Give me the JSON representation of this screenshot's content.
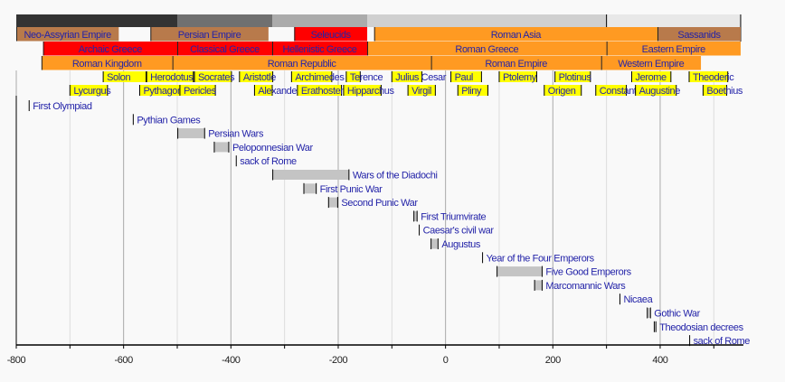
{
  "chart_data": {
    "type": "timeline",
    "xlim": [
      -800,
      550
    ],
    "x_ticks": [
      -800,
      -600,
      -400,
      -200,
      0,
      200,
      400
    ],
    "grid": {
      "major_every": 200,
      "minor_every": 100
    },
    "colors": {
      "text": "#2323a8",
      "brown": "#b87a4b",
      "red": "#ff0000",
      "orange": "#ff9a22",
      "person": "#ffff00",
      "event_bar": "#c4c4c4",
      "era_bands": [
        "#333333",
        "#707070",
        "#ababab",
        "#d0d0d0",
        "#e8e8e8"
      ]
    },
    "era_band": [
      {
        "start": -800,
        "end": -500
      },
      {
        "start": -500,
        "end": -323
      },
      {
        "start": -323,
        "end": -146
      },
      {
        "start": -146,
        "end": 300
      },
      {
        "start": 300,
        "end": 550
      }
    ],
    "rows": [
      [
        {
          "label": "Neo-Assyrian Empire",
          "start": -800,
          "end": -609,
          "color": "brown"
        },
        {
          "label": "Persian Empire",
          "start": -550,
          "end": -330,
          "color": "brown"
        },
        {
          "label": "Seleucids",
          "start": -282,
          "end": -146,
          "color": "red"
        },
        {
          "label": "Roman Asia",
          "start": -133,
          "end": 395,
          "color": "orange"
        },
        {
          "label": "Sassanids",
          "start": 395,
          "end": 550,
          "color": "brown"
        }
      ],
      [
        {
          "label": "Archaic Greece",
          "start": -750,
          "end": -500,
          "color": "red"
        },
        {
          "label": "Classical Greece",
          "start": -500,
          "end": -323,
          "color": "red"
        },
        {
          "label": "Hellenistic Greece",
          "start": -323,
          "end": -146,
          "color": "red"
        },
        {
          "label": "Roman Greece",
          "start": -146,
          "end": 300,
          "color": "orange"
        },
        {
          "label": "Eastern Empire",
          "start": 300,
          "end": 550,
          "color": "orange"
        }
      ],
      [
        {
          "label": "Roman Kingdom",
          "start": -753,
          "end": -509,
          "color": "orange"
        },
        {
          "label": "Roman Republic",
          "start": -509,
          "end": -27,
          "color": "orange"
        },
        {
          "label": "Roman Empire",
          "start": -27,
          "end": 290,
          "color": "orange"
        },
        {
          "label": "Western Empire",
          "start": 290,
          "end": 476,
          "color": "orange"
        }
      ]
    ],
    "people": [
      [
        {
          "label": "Solon",
          "start": -638,
          "end": -558
        },
        {
          "label": "Herodotus",
          "start": -557,
          "end": -470
        },
        {
          "label": "Socrates",
          "start": -468,
          "end": -399
        },
        {
          "label": "Aristotle",
          "start": -384,
          "end": -322
        },
        {
          "label": "Archimedes",
          "start": -287,
          "end": -212
        },
        {
          "label": "Terence",
          "start": -185,
          "end": -159
        },
        {
          "label": "Julius Cesar",
          "start": -100,
          "end": -44
        },
        {
          "label": "Paul",
          "start": 10,
          "end": 67
        },
        {
          "label": "Ptolemy",
          "start": 100,
          "end": 170
        },
        {
          "label": "Plotinus",
          "start": 204,
          "end": 270
        },
        {
          "label": "Jerome",
          "start": 347,
          "end": 420
        },
        {
          "label": "Theoderic",
          "start": 454,
          "end": 526
        }
      ],
      [
        {
          "label": "Lycurgus",
          "start": -700,
          "end": -630
        },
        {
          "label": "Pythagoras",
          "start": -570,
          "end": -495
        },
        {
          "label": "Pericles",
          "start": -495,
          "end": -429
        },
        {
          "label": "Alexander",
          "start": -356,
          "end": -323
        },
        {
          "label": "Erathostenes",
          "start": -276,
          "end": -194
        },
        {
          "label": "Hipparchus",
          "start": -190,
          "end": -120
        },
        {
          "label": "Virgil",
          "start": -70,
          "end": -19
        },
        {
          "label": "Pliny",
          "start": 23,
          "end": 79
        },
        {
          "label": "Origen",
          "start": 184,
          "end": 253
        },
        {
          "label": "Constantine",
          "start": 280,
          "end": 337
        },
        {
          "label": "Augustine",
          "start": 354,
          "end": 430
        },
        {
          "label": "Boethius",
          "start": 480,
          "end": 524
        }
      ]
    ],
    "events": [
      {
        "label": "First Olympiad",
        "start": -776,
        "end": -776
      },
      {
        "label": "Pythian Games",
        "start": -582,
        "end": -582
      },
      {
        "label": "Persian Wars",
        "start": -499,
        "end": -449
      },
      {
        "label": "Peloponnesian War",
        "start": -431,
        "end": -404
      },
      {
        "label": "sack of Rome",
        "start": -390,
        "end": -390
      },
      {
        "label": "Wars of the Diadochi",
        "start": -322,
        "end": -180
      },
      {
        "label": "First Punic War",
        "start": -264,
        "end": -241
      },
      {
        "label": "Second Punic War",
        "start": -218,
        "end": -201
      },
      {
        "label": "First Triumvirate",
        "start": -59,
        "end": -53
      },
      {
        "label": "Caesar's civil war",
        "start": -49,
        "end": -49
      },
      {
        "label": "Augustus",
        "start": -27,
        "end": -14
      },
      {
        "label": "Year of the Four Emperors",
        "start": 69,
        "end": 69
      },
      {
        "label": "Five Good Emperors",
        "start": 96,
        "end": 180
      },
      {
        "label": "Marcomannic Wars",
        "start": 166,
        "end": 180
      },
      {
        "label": "Nicaea",
        "start": 325,
        "end": 325
      },
      {
        "label": "Gothic War",
        "start": 376,
        "end": 382
      },
      {
        "label": "Theodosian decrees",
        "start": 389,
        "end": 392
      },
      {
        "label": "sack of Rome",
        "start": 455,
        "end": 455
      }
    ]
  }
}
